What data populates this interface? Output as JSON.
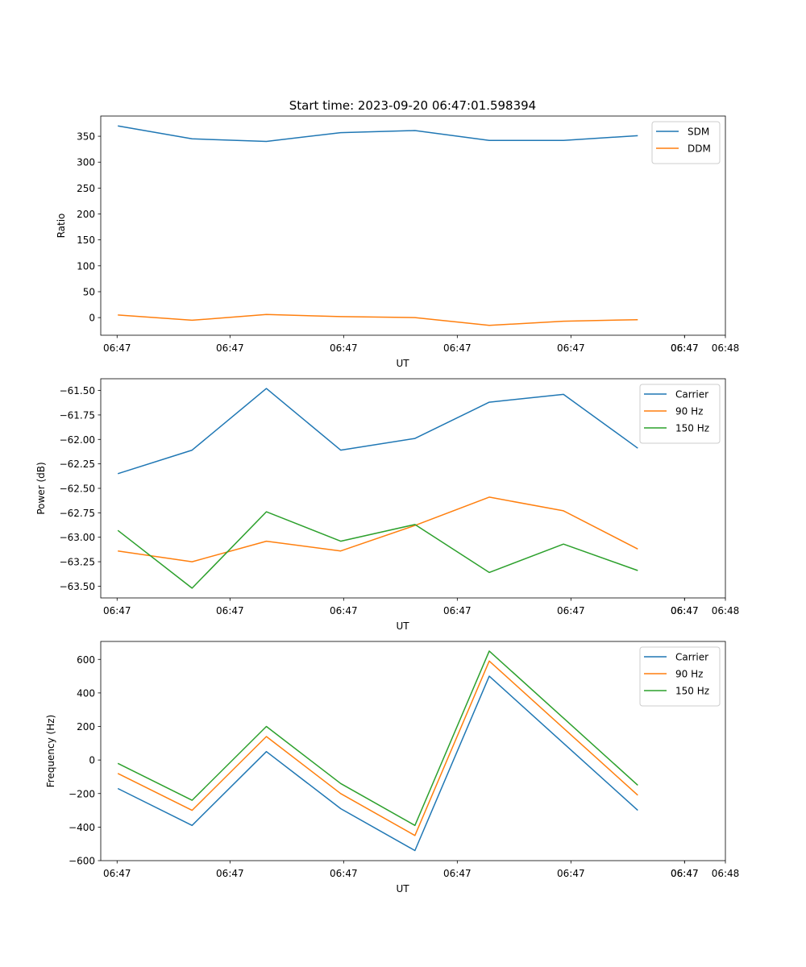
{
  "title": "Start time: 2023-09-20 06:47:01.598394",
  "colors": {
    "blue": "#1f77b4",
    "orange": "#ff7f0e",
    "green": "#2ca02c"
  },
  "chart_data": [
    {
      "type": "line",
      "xlabel": "UT",
      "ylabel": "Ratio",
      "x": [
        1,
        2,
        3,
        4,
        5,
        6,
        7,
        8
      ],
      "xlim": [
        0.77,
        9.18
      ],
      "x_ticks": [
        0.99,
        2.51,
        4.04,
        5.57,
        7.1,
        8.63
      ],
      "x_tick_labels": [
        "06:47",
        "06:47",
        "06:47",
        "06:47",
        "06:47",
        "06:47",
        "06:47",
        "06:48"
      ],
      "x_tick_positions": [
        0.99,
        2.51,
        4.04,
        5.57,
        7.1,
        8.63,
        8.63,
        9.18
      ],
      "ylim": [
        -34,
        389
      ],
      "y_ticks": [
        0,
        50,
        100,
        150,
        200,
        250,
        300,
        350
      ],
      "y_tick_labels": [
        "0",
        "50",
        "100",
        "150",
        "200",
        "250",
        "300",
        "350"
      ],
      "legend": "top-right",
      "series": [
        {
          "name": "SDM",
          "color": "#1f77b4",
          "values": [
            370,
            345,
            340,
            357,
            361,
            342,
            342,
            351
          ]
        },
        {
          "name": "DDM",
          "color": "#ff7f0e",
          "values": [
            5,
            -5,
            6,
            2,
            0,
            -15,
            -7,
            -4
          ]
        }
      ]
    },
    {
      "type": "line",
      "xlabel": "UT",
      "ylabel": "Power (dB)",
      "x": [
        1,
        2,
        3,
        4,
        5,
        6,
        7,
        8
      ],
      "xlim": [
        0.77,
        9.18
      ],
      "x_ticks": [
        0.99,
        2.51,
        4.04,
        5.57,
        7.1,
        8.63
      ],
      "x_tick_labels": [
        "06:47",
        "06:47",
        "06:47",
        "06:47",
        "06:47",
        "06:47",
        "06:47",
        "06:48"
      ],
      "x_tick_positions": [
        0.99,
        2.51,
        4.04,
        5.57,
        7.1,
        8.63,
        8.63,
        9.18
      ],
      "ylim": [
        -63.62,
        -61.38
      ],
      "y_ticks": [
        -63.5,
        -63.25,
        -63.0,
        -62.75,
        -62.5,
        -62.25,
        -62.0,
        -61.75,
        -61.5
      ],
      "y_tick_labels": [
        "−63.50",
        "−63.25",
        "−63.00",
        "−62.75",
        "−62.50",
        "−62.25",
        "−62.00",
        "−61.75",
        "−61.50"
      ],
      "legend": "top-right",
      "series": [
        {
          "name": "Carrier",
          "color": "#1f77b4",
          "values": [
            -62.35,
            -62.11,
            -61.48,
            -62.11,
            -61.99,
            -61.62,
            -61.54,
            -62.09
          ]
        },
        {
          "name": "90 Hz",
          "color": "#ff7f0e",
          "values": [
            -63.14,
            -63.25,
            -63.04,
            -63.14,
            -62.88,
            -62.59,
            -62.73,
            -63.12
          ]
        },
        {
          "name": "150 Hz",
          "color": "#2ca02c",
          "values": [
            -62.93,
            -63.52,
            -62.74,
            -63.04,
            -62.87,
            -63.36,
            -63.07,
            -63.34
          ]
        }
      ]
    },
    {
      "type": "line",
      "xlabel": "UT",
      "ylabel": "Frequency (Hz)",
      "x": [
        1,
        2,
        3,
        4,
        5,
        6,
        7,
        8
      ],
      "xlim": [
        0.77,
        9.18
      ],
      "x_ticks": [
        0.99,
        2.51,
        4.04,
        5.57,
        7.1,
        8.63
      ],
      "x_tick_labels": [
        "06:47",
        "06:47",
        "06:47",
        "06:47",
        "06:47",
        "06:47",
        "06:47",
        "06:48"
      ],
      "x_tick_positions": [
        0.99,
        2.51,
        4.04,
        5.57,
        7.1,
        8.63,
        8.63,
        9.18
      ],
      "ylim": [
        -600,
        707
      ],
      "y_ticks": [
        -600,
        -400,
        -200,
        0,
        200,
        400,
        600
      ],
      "y_tick_labels": [
        "−600",
        "−400",
        "−200",
        "0",
        "200",
        "400",
        "600"
      ],
      "legend": "top-right",
      "series": [
        {
          "name": "Carrier",
          "color": "#1f77b4",
          "values": [
            -170,
            -390,
            50,
            -290,
            -540,
            500,
            100,
            -300
          ]
        },
        {
          "name": "90 Hz",
          "color": "#ff7f0e",
          "values": [
            -80,
            -300,
            140,
            -200,
            -450,
            590,
            190,
            -210
          ]
        },
        {
          "name": "150 Hz",
          "color": "#2ca02c",
          "values": [
            -20,
            -240,
            200,
            -140,
            -390,
            650,
            250,
            -150
          ]
        }
      ]
    }
  ]
}
